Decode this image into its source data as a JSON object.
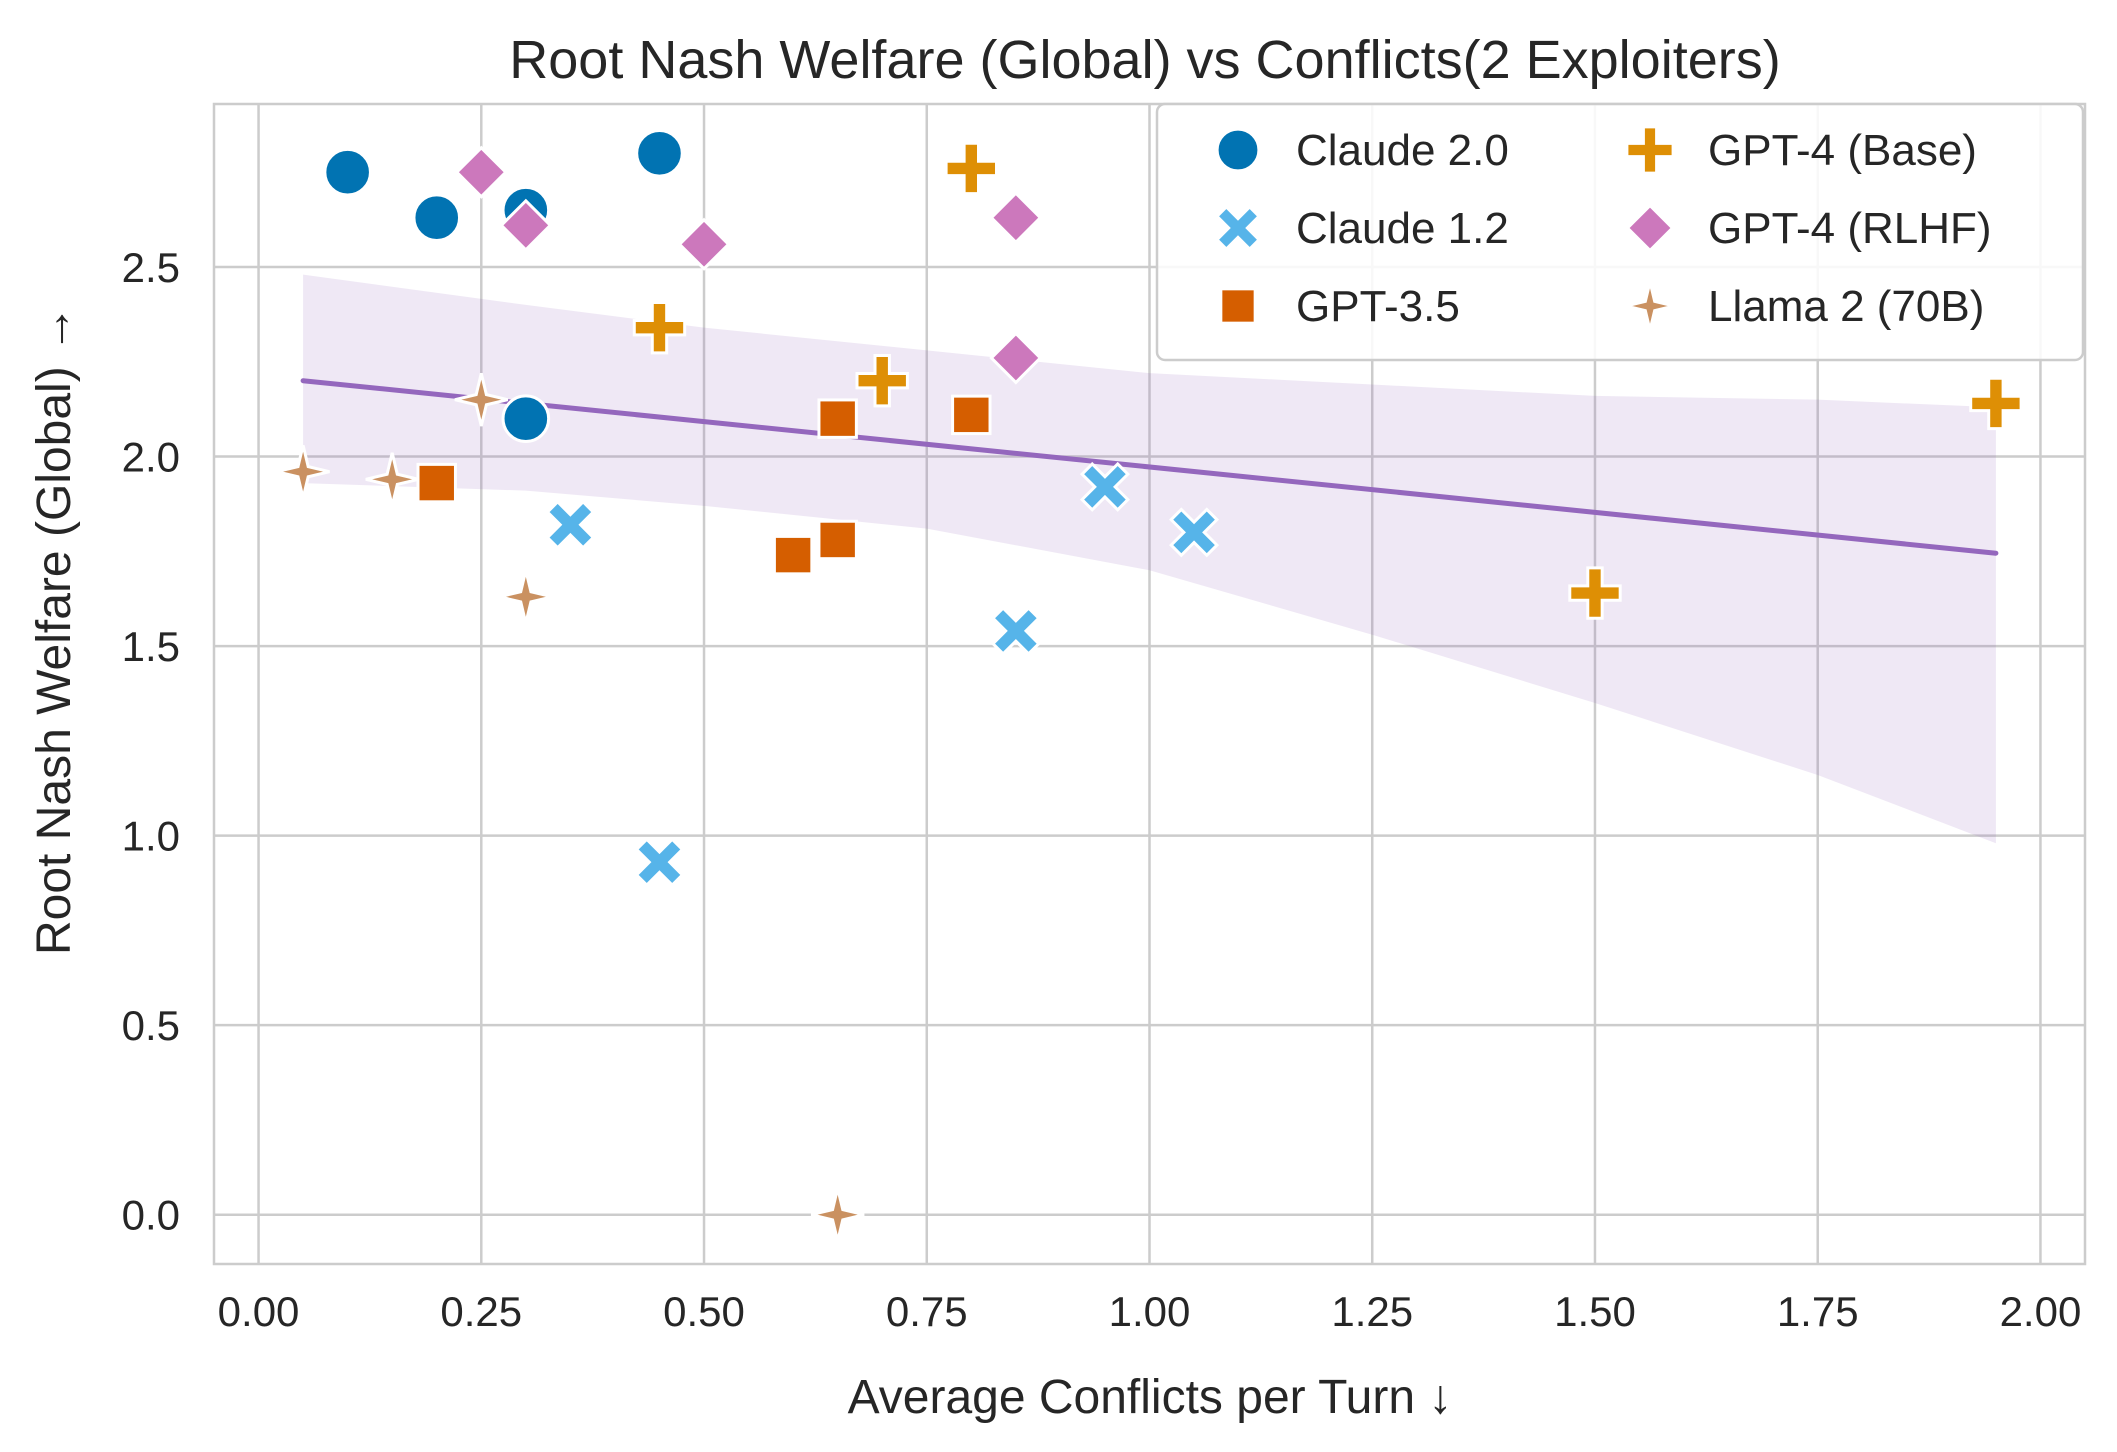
{
  "chart_data": {
    "type": "scatter",
    "title": "Root Nash Welfare (Global) vs Conflicts(2 Exploiters)",
    "xlabel": "Average Conflicts per Turn ↓",
    "ylabel": "Root Nash Welfare (Global) →",
    "xlim": [
      -0.05,
      2.05
    ],
    "ylim": [
      -0.13,
      2.93
    ],
    "xticks": [
      0.0,
      0.25,
      0.5,
      0.75,
      1.0,
      1.25,
      1.5,
      1.75,
      2.0
    ],
    "xtick_labels": [
      "0.00",
      "0.25",
      "0.50",
      "0.75",
      "1.00",
      "1.25",
      "1.50",
      "1.75",
      "2.00"
    ],
    "yticks": [
      0.0,
      0.5,
      1.0,
      1.5,
      2.0,
      2.5
    ],
    "ytick_labels": [
      "0.0",
      "0.5",
      "1.0",
      "1.5",
      "2.0",
      "2.5"
    ],
    "grid": true,
    "legend_position": "top-right",
    "regression": {
      "color": "#9467bd",
      "x_range": [
        0.05,
        1.95
      ],
      "line_y": [
        2.2,
        1.745
      ],
      "band_upper": [
        [
          0.05,
          2.48
        ],
        [
          0.3,
          2.4
        ],
        [
          0.5,
          2.34
        ],
        [
          0.75,
          2.28
        ],
        [
          1.0,
          2.22
        ],
        [
          1.25,
          2.19
        ],
        [
          1.5,
          2.16
        ],
        [
          1.75,
          2.15
        ],
        [
          1.95,
          2.13
        ]
      ],
      "band_lower": [
        [
          0.05,
          1.93
        ],
        [
          0.3,
          1.91
        ],
        [
          0.5,
          1.87
        ],
        [
          0.75,
          1.81
        ],
        [
          1.0,
          1.7
        ],
        [
          1.25,
          1.53
        ],
        [
          1.5,
          1.35
        ],
        [
          1.75,
          1.16
        ],
        [
          1.95,
          0.98
        ]
      ]
    },
    "series": [
      {
        "name": "Claude 2.0",
        "marker": "circle",
        "color": "#0173b2",
        "points": [
          [
            0.1,
            2.75
          ],
          [
            0.2,
            2.63
          ],
          [
            0.3,
            2.65
          ],
          [
            0.45,
            2.8
          ],
          [
            0.3,
            2.1
          ]
        ]
      },
      {
        "name": "Claude 1.2",
        "marker": "x",
        "color": "#56b4e9",
        "points": [
          [
            0.35,
            1.82
          ],
          [
            0.45,
            0.93
          ],
          [
            0.85,
            1.54
          ],
          [
            0.95,
            1.92
          ],
          [
            1.05,
            1.8
          ]
        ]
      },
      {
        "name": "GPT-3.5",
        "marker": "square",
        "color": "#d55e00",
        "points": [
          [
            0.2,
            1.93
          ],
          [
            0.6,
            1.74
          ],
          [
            0.65,
            1.78
          ],
          [
            0.65,
            2.1
          ],
          [
            0.8,
            2.11
          ]
        ]
      },
      {
        "name": "GPT-4 (Base)",
        "marker": "plus",
        "color": "#de8f05",
        "points": [
          [
            0.45,
            2.34
          ],
          [
            0.7,
            2.2
          ],
          [
            0.8,
            2.76
          ],
          [
            1.5,
            1.64
          ],
          [
            1.95,
            2.14
          ]
        ]
      },
      {
        "name": "GPT-4 (RLHF)",
        "marker": "diamond",
        "color": "#cc78bc",
        "points": [
          [
            0.25,
            2.75
          ],
          [
            0.3,
            2.61
          ],
          [
            0.5,
            2.56
          ],
          [
            0.85,
            2.63
          ],
          [
            0.85,
            2.26
          ]
        ]
      },
      {
        "name": "Llama 2 (70B)",
        "marker": "star4",
        "color": "#ca9161",
        "points": [
          [
            0.05,
            1.96
          ],
          [
            0.15,
            1.94
          ],
          [
            0.25,
            2.15
          ],
          [
            0.3,
            1.63
          ],
          [
            0.65,
            0.0
          ]
        ]
      }
    ]
  }
}
